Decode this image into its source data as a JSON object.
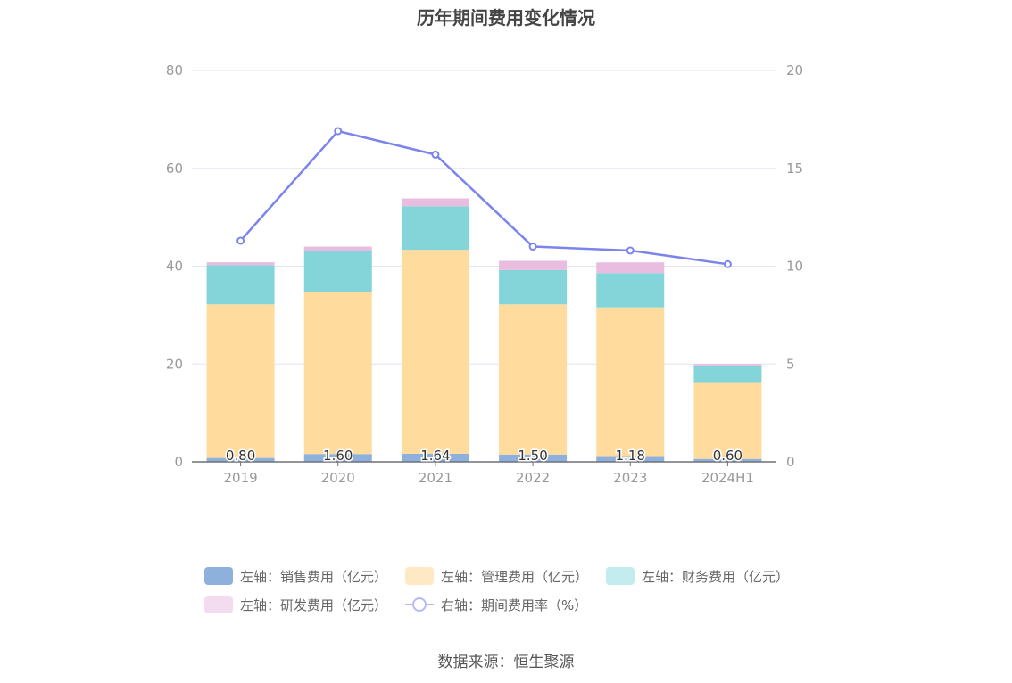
{
  "title": "历年期间费用变化情况",
  "source": "数据来源：恒生聚源",
  "colors": {
    "sales": "#8eb0dd",
    "admin": "#ffdb9e",
    "finance": "#84d5d9",
    "rnd": "#e8bde0",
    "rate": "#7b84ed",
    "axis_text": "#999999",
    "grid": "#e3e6f2"
  },
  "legend": [
    {
      "label": "左轴：销售费用（亿元）",
      "key": "sales",
      "swatch": "#8eb0dd",
      "kind": "box"
    },
    {
      "label": "左轴：管理费用（亿元）",
      "key": "admin",
      "swatch": "#ffe8c4",
      "kind": "box"
    },
    {
      "label": "左轴：财务费用（亿元）",
      "key": "finance",
      "swatch": "#c3ecee",
      "kind": "box"
    },
    {
      "label": "左轴：研发费用（亿元）",
      "key": "rnd",
      "swatch": "#f3dcef",
      "kind": "box"
    },
    {
      "label": "右轴：期间费用率（%）",
      "key": "rate",
      "swatch": "#b6baf4",
      "kind": "line"
    }
  ],
  "chart_data": {
    "type": "bar",
    "stacked": true,
    "categories": [
      "2019",
      "2020",
      "2021",
      "2022",
      "2023",
      "2024H1"
    ],
    "series": [
      {
        "name": "左轴：销售费用（亿元）",
        "axis": "left",
        "values": [
          0.8,
          1.6,
          1.64,
          1.5,
          1.18,
          0.6
        ],
        "labels": [
          "0.80",
          "1.60",
          "1.64",
          "1.50",
          "1.18",
          "0.60"
        ]
      },
      {
        "name": "左轴：管理费用（亿元）",
        "axis": "left",
        "values": [
          31.4,
          33.2,
          41.7,
          30.7,
          30.4,
          15.7
        ]
      },
      {
        "name": "左轴：财务费用（亿元）",
        "axis": "left",
        "values": [
          8.0,
          8.3,
          8.9,
          7.0,
          7.0,
          3.2
        ]
      },
      {
        "name": "左轴：研发费用（亿元）",
        "axis": "left",
        "values": [
          0.6,
          0.9,
          1.6,
          1.9,
          2.2,
          0.5
        ]
      },
      {
        "name": "右轴：期间费用率（%）",
        "axis": "right",
        "type": "line",
        "values": [
          11.3,
          16.9,
          15.7,
          11.0,
          10.8,
          10.1
        ]
      }
    ],
    "left_axis": {
      "ylim": [
        0,
        80
      ],
      "ticks": [
        "0",
        "20",
        "40",
        "60",
        "80"
      ]
    },
    "right_axis": {
      "ylim": [
        0,
        20
      ],
      "ticks": [
        "0",
        "5",
        "10",
        "15",
        "20"
      ]
    },
    "grid": true,
    "legend_position": "bottom"
  }
}
